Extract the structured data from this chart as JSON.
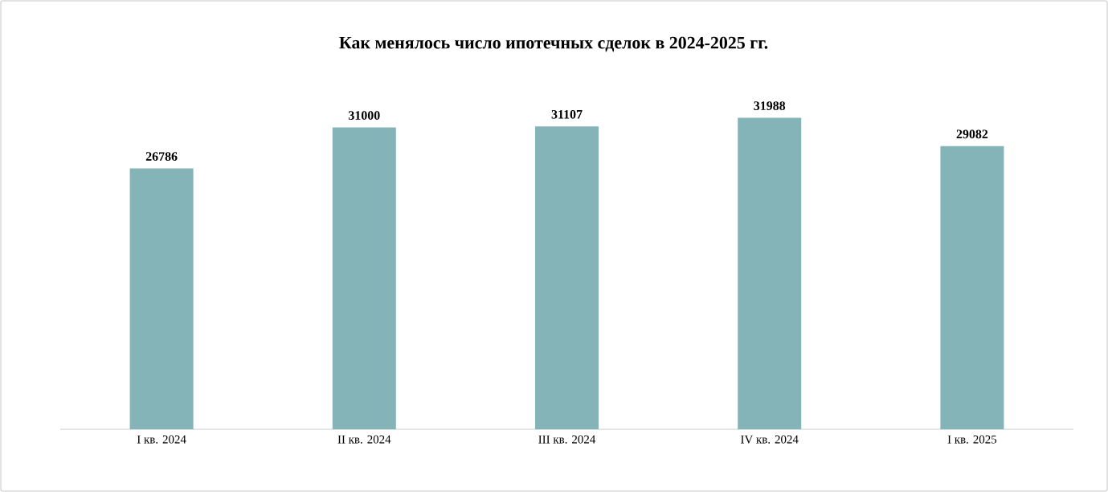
{
  "chart_data": {
    "type": "bar",
    "title": "Как менялось число ипотечных сделок в 2024-2025 гг.",
    "categories": [
      "I кв. 2024",
      "II кв. 2024",
      "III кв. 2024",
      "IV кв. 2024",
      "I кв. 2025"
    ],
    "values": [
      26786,
      31000,
      31107,
      31988,
      29082
    ],
    "color": "#84b4b8",
    "tick_labels": "x",
    "data_labels": true
  }
}
